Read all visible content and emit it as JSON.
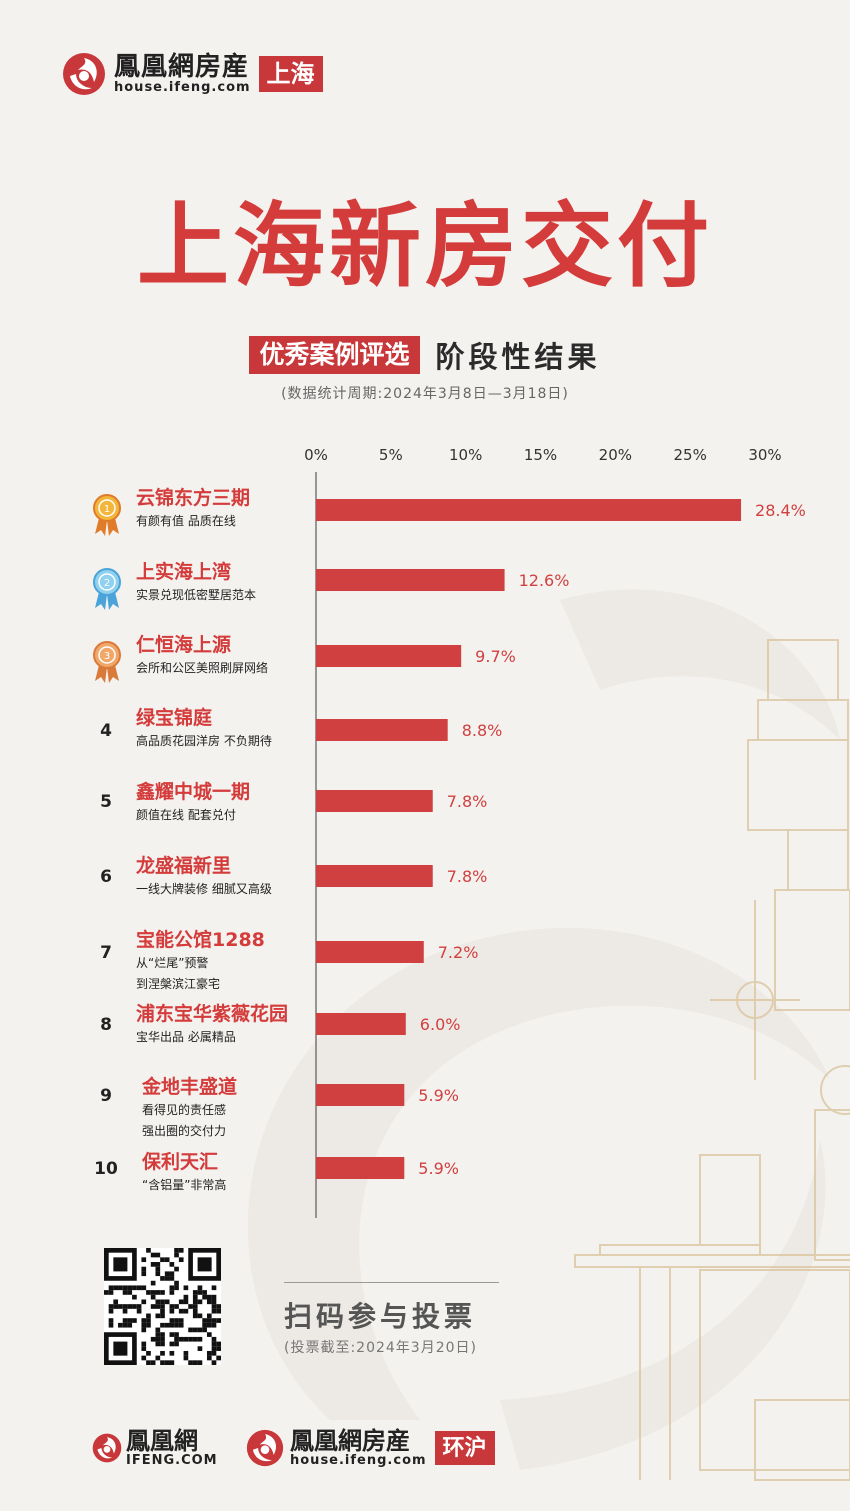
{
  "header": {
    "brand_name": "鳳凰網房産",
    "brand_url": "house.ifeng.com",
    "city": "上海"
  },
  "title": "上海新房交付",
  "subtitle": {
    "badge": "优秀案例评选",
    "text": "阶段性结果"
  },
  "period": "(数据统计周期:2024年3月8日—3月18日)",
  "chart_data": {
    "type": "bar",
    "orientation": "horizontal",
    "xlim": [
      0,
      30
    ],
    "ticks": [
      "0%",
      "5%",
      "10%",
      "15%",
      "20%",
      "25%",
      "30%"
    ],
    "tick_values": [
      0,
      5,
      10,
      15,
      20,
      25,
      30
    ],
    "bar_color": "#d14040",
    "label_color": "#d14040",
    "items": [
      {
        "rank": 1,
        "rank_label": "",
        "medal": "gold",
        "name": "云锦东方三期",
        "desc": [
          "有颜有值 品质在线"
        ],
        "value": 28.4,
        "label": "28.4%"
      },
      {
        "rank": 2,
        "rank_label": "",
        "medal": "silver",
        "name": "上实海上湾",
        "desc": [
          "实景兑现低密墅居范本"
        ],
        "value": 12.6,
        "label": "12.6%"
      },
      {
        "rank": 3,
        "rank_label": "",
        "medal": "bronze",
        "name": "仁恒海上源",
        "desc": [
          "会所和公区美照刷屏网络"
        ],
        "value": 9.7,
        "label": "9.7%"
      },
      {
        "rank": 4,
        "rank_label": "4",
        "medal": "",
        "name": "绿宝锦庭",
        "desc": [
          "高品质花园洋房 不负期待"
        ],
        "value": 8.8,
        "label": "8.8%"
      },
      {
        "rank": 5,
        "rank_label": "5",
        "medal": "",
        "name": "鑫耀中城一期",
        "desc": [
          "颜值在线 配套兑付"
        ],
        "value": 7.8,
        "label": "7.8%"
      },
      {
        "rank": 6,
        "rank_label": "6",
        "medal": "",
        "name": "龙盛福新里",
        "desc": [
          "一线大牌装修 细腻又高级"
        ],
        "value": 7.8,
        "label": "7.8%"
      },
      {
        "rank": 7,
        "rank_label": "7",
        "medal": "",
        "name": "宝能公馆1288",
        "desc": [
          "从“烂尾”预警",
          "到涅槃滨江豪宅"
        ],
        "value": 7.2,
        "label": "7.2%"
      },
      {
        "rank": 8,
        "rank_label": "8",
        "medal": "",
        "name": "浦东宝华紫薇花园",
        "desc": [
          "宝华出品 必属精品"
        ],
        "value": 6.0,
        "label": "6.0%"
      },
      {
        "rank": 9,
        "rank_label": "9",
        "medal": "",
        "name": "金地丰盛道",
        "desc": [
          "看得见的责任感",
          "强出圈的交付力"
        ],
        "value": 5.9,
        "label": "5.9%"
      },
      {
        "rank": 10,
        "rank_label": "10",
        "medal": "",
        "name": "保利天汇",
        "desc": [
          "“含铝量”非常高"
        ],
        "value": 5.9,
        "label": "5.9%"
      }
    ]
  },
  "vote": {
    "title": "扫码参与投票",
    "deadline": "(投票截至:2024年3月20日)"
  },
  "footer": {
    "logo1_name": "鳳凰網",
    "logo1_url": "IFENG.COM",
    "logo2_name": "鳳凰網房産",
    "logo2_url": "house.ifeng.com",
    "logo2_badge": "环沪"
  },
  "colors": {
    "accent": "#c8383b",
    "title": "#d43b3b",
    "background": "#f4f2ef"
  }
}
